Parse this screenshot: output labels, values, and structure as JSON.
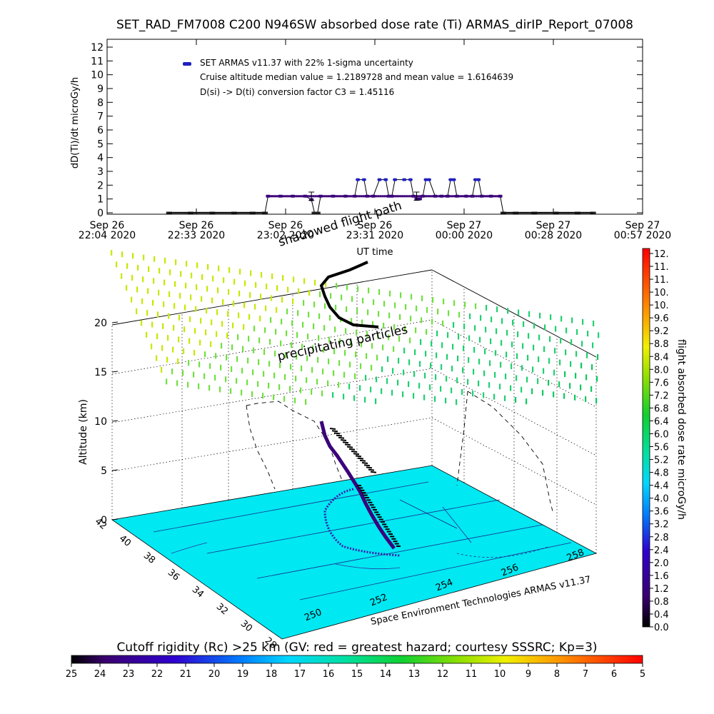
{
  "title": "SET_RAD_FM7008  C200 N946SW absorbed dose rate (Ti) ARMAS_dirIP_Report_07008",
  "top_plot": {
    "ylabel": "dD(Ti)/dt microGy/h",
    "yticks": [
      "0",
      "1",
      "2",
      "3",
      "4",
      "5",
      "6",
      "7",
      "8",
      "9",
      "10",
      "11",
      "12"
    ],
    "xticks": [
      {
        "line1": "Sep 26",
        "line2": "22:04 2020"
      },
      {
        "line1": "Sep 26",
        "line2": "22:33 2020"
      },
      {
        "line1": "Sep 26",
        "line2": "23:02 2020"
      },
      {
        "line1": "Sep 26",
        "line2": "23:31 2020"
      },
      {
        "line1": "Sep 27",
        "line2": "00:00 2020"
      },
      {
        "line1": "Sep 27",
        "line2": "00:28 2020"
      },
      {
        "line1": "Sep 27",
        "line2": "00:57 2020"
      }
    ],
    "xlabel": "UT time",
    "legend_series": "SET ARMAS v11.37 with 22% 1-sigma uncertainty",
    "legend_line2": "Cruise altitude median value = 1.2189728 and mean value = 1.6164639",
    "legend_line3": "D(si) -> D(ti) conversion factor C3 = 1.45116"
  },
  "chart_data": [
    {
      "type": "scatter",
      "title": "SET_RAD_FM7008  C200 N946SW absorbed dose rate (Ti) ARMAS_dirIP_Report_07008",
      "ylabel": "dD(Ti)/dt microGy/h",
      "xlabel": "UT time",
      "ylim": [
        0,
        12
      ],
      "x_unit": "minutes after Sep 26 22:04 2020",
      "xlim": [
        0,
        173
      ],
      "series": [
        {
          "name": "SET ARMAS v11.37 with 22% 1-sigma uncertainty",
          "color": "#3b007a",
          "points": [
            [
              20,
              0
            ],
            [
              27,
              0
            ],
            [
              34,
              0
            ],
            [
              41,
              0
            ],
            [
              47,
              0
            ],
            [
              51,
              0
            ],
            [
              52,
              1.2
            ],
            [
              56,
              1.2
            ],
            [
              60,
              1.2
            ],
            [
              64,
              1.2
            ],
            [
              66,
              0.95
            ],
            [
              67,
              0
            ],
            [
              68,
              0
            ],
            [
              69,
              1.2
            ],
            [
              73,
              1.2
            ],
            [
              77,
              1.2
            ],
            [
              80,
              1.2
            ],
            [
              81,
              2.4
            ],
            [
              83,
              2.4
            ],
            [
              84,
              1.2
            ],
            [
              86,
              1.2
            ],
            [
              88,
              2.4
            ],
            [
              90,
              2.4
            ],
            [
              91,
              1.2
            ],
            [
              92,
              1.2
            ],
            [
              93,
              2.4
            ],
            [
              96,
              2.4
            ],
            [
              98,
              2.4
            ],
            [
              99,
              1.2
            ],
            [
              100,
              1.0
            ],
            [
              101,
              1.0
            ],
            [
              102,
              1.2
            ],
            [
              103,
              2.4
            ],
            [
              104,
              2.4
            ],
            [
              106,
              1.2
            ],
            [
              108,
              1.2
            ],
            [
              110,
              1.2
            ],
            [
              111,
              2.4
            ],
            [
              112,
              2.4
            ],
            [
              113,
              1.2
            ],
            [
              116,
              1.2
            ],
            [
              118,
              1.2
            ],
            [
              119,
              2.4
            ],
            [
              120,
              2.4
            ],
            [
              121,
              1.2
            ],
            [
              124,
              1.2
            ],
            [
              127,
              1.2
            ],
            [
              128,
              0
            ],
            [
              132,
              0
            ],
            [
              138,
              0
            ],
            [
              145,
              0
            ],
            [
              152,
              0
            ],
            [
              157,
              0
            ]
          ]
        }
      ],
      "annotations": [
        "Cruise altitude median value = 1.2189728 and mean value = 1.6164639",
        "D(si) -> D(ti) conversion factor C3 = 1.45116"
      ]
    },
    {
      "type": "scatter",
      "dimensions": "3d",
      "zlabel": "Altitude (km)",
      "zticks": [
        "0",
        "5",
        "10",
        "15",
        "20"
      ],
      "lat_ticks": [
        "28",
        "30",
        "32",
        "34",
        "36",
        "38",
        "40",
        "42"
      ],
      "lon_ticks": [
        "250",
        "252",
        "254",
        "256",
        "258"
      ],
      "labels": [
        "shadowed flight path",
        "precipitating particles"
      ],
      "credit": "Space Environment Technologies ARMAS v11.37"
    }
  ],
  "three_d": {
    "zlabel": "Altitude (km)",
    "zticks": [
      "0",
      "5",
      "10",
      "15",
      "20"
    ],
    "lat_ticks": [
      "42",
      "40",
      "38",
      "36",
      "34",
      "32",
      "30",
      "28"
    ],
    "lon_ticks": [
      "250",
      "252",
      "254",
      "256",
      "258"
    ],
    "shadow_label": "shadowed flight path",
    "precip_label": "precipitating particles",
    "credit": "Space Environment Technologies ARMAS v11.37"
  },
  "colorbar_right": {
    "label": "flight absorbed dose rate microGy/h",
    "ticks": [
      "12.",
      "11.",
      "11.",
      "10.",
      "10.",
      "9.6",
      "9.2",
      "8.8",
      "8.4",
      "8.0",
      "7.6",
      "7.2",
      "6.8",
      "6.4",
      "6.0",
      "5.6",
      "5.2",
      "4.8",
      "4.4",
      "4.0",
      "3.6",
      "3.2",
      "2.8",
      "2.4",
      "2.0",
      "1.6",
      "1.2",
      "0.8",
      "0.4",
      "0.0"
    ]
  },
  "colorbar_bottom": {
    "label": "Cutoff rigidity (Rc) >25 km (GV: red = greatest hazard; courtesy SSSRC; Kp=3)",
    "ticks": [
      "25",
      "24",
      "23",
      "22",
      "21",
      "20",
      "19",
      "18",
      "17",
      "16",
      "15",
      "14",
      "13",
      "12",
      "11",
      "10",
      "9",
      "8",
      "7",
      "6",
      "5"
    ]
  },
  "colors": {
    "ground": "#00e5f0",
    "dose_trace": "#3b007a",
    "error_bar": "#000000"
  }
}
